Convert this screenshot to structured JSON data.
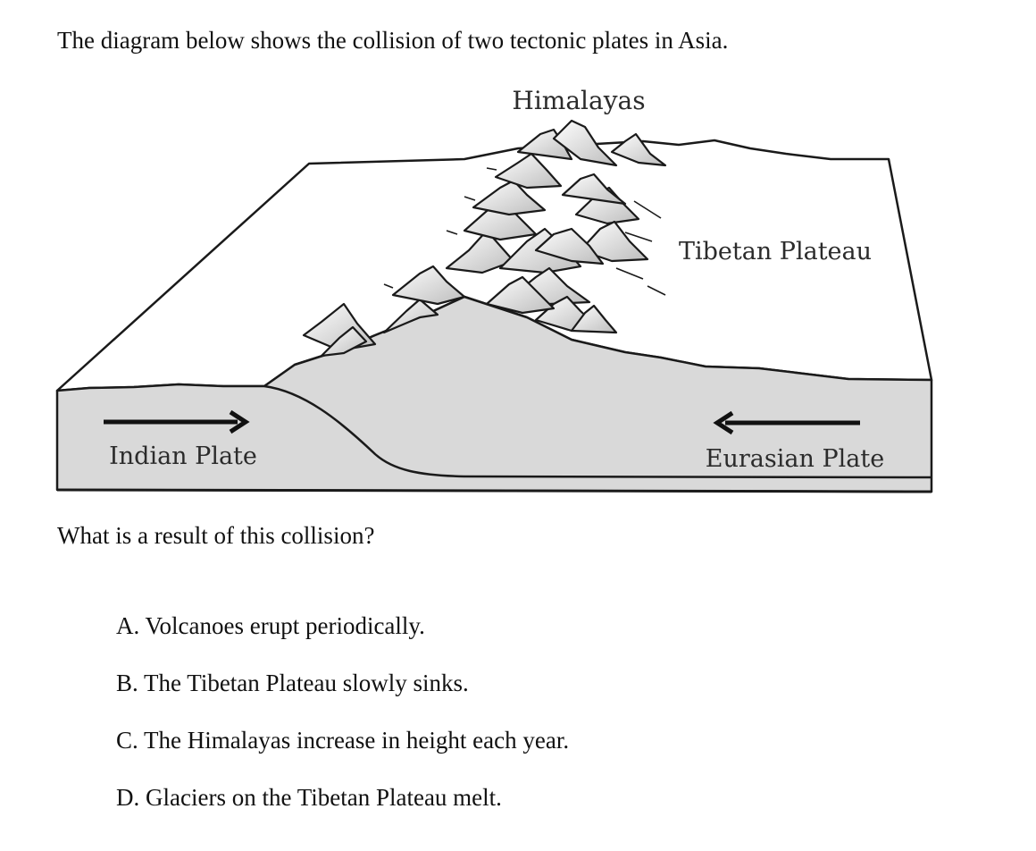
{
  "intro_text": "The diagram below shows the collision of two tectonic plates in Asia.",
  "diagram": {
    "labels": {
      "mountains": "Himalayas",
      "plateau": "Tibetan Plateau",
      "left_plate": "Indian Plate",
      "right_plate": "Eurasian Plate"
    },
    "colors": {
      "outline": "#1a1a1a",
      "crust_fill": "#d9d9d9",
      "surface_fill": "#ffffff"
    },
    "motion": {
      "left_plate": "moves right",
      "right_plate": "moves left"
    }
  },
  "question_text": "What is a result of this collision?",
  "choices": [
    {
      "letter": "A.",
      "text": "Volcanoes erupt periodically."
    },
    {
      "letter": "B.",
      "text": "The Tibetan Plateau slowly sinks."
    },
    {
      "letter": "C.",
      "text": "The Himalayas increase in height each year."
    },
    {
      "letter": "D.",
      "text": "Glaciers on the Tibetan Plateau melt."
    }
  ]
}
